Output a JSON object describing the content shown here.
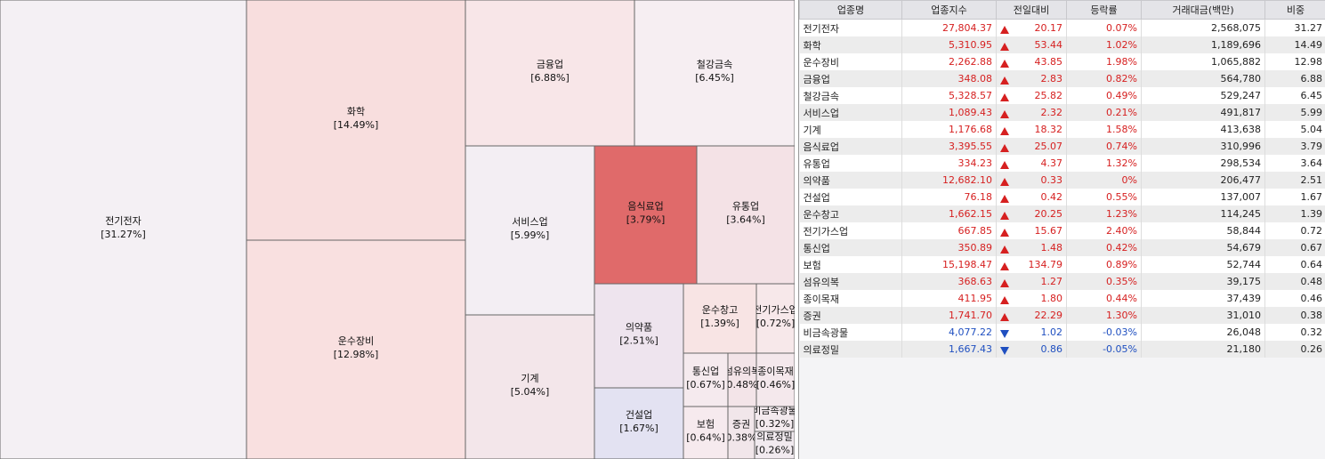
{
  "chart_data": {
    "type": "treemap",
    "categories": [
      "전기전자",
      "화학",
      "운수장비",
      "금융업",
      "철강금속",
      "서비스업",
      "기계",
      "음식료업",
      "유통업",
      "의약품",
      "건설업",
      "운수창고",
      "전기가스업",
      "통신업",
      "보험",
      "섬유의복",
      "종이목재",
      "증권",
      "비금속광물",
      "의료정밀"
    ],
    "values": [
      31.27,
      14.49,
      12.98,
      6.88,
      6.45,
      5.99,
      5.04,
      3.79,
      3.64,
      2.51,
      1.67,
      1.39,
      0.72,
      0.67,
      0.64,
      0.48,
      0.46,
      0.38,
      0.32,
      0.26
    ],
    "value_labels": [
      "[31.27%]",
      "[14.49%]",
      "[12.98%]",
      "[6.88%]",
      "[6.45%]",
      "[5.99%]",
      "[5.04%]",
      "[3.79%]",
      "[3.64%]",
      "[2.51%]",
      "[1.67%]",
      "[1.39%]",
      "[0.72%]",
      "[0.67%]",
      "[0.64%]",
      "[0.48%]",
      "[0.46%]",
      "[0.38%]",
      "[0.32%]",
      "[0.26%]"
    ],
    "colors": [
      "#f4f0f4",
      "#f8dede",
      "#f9e0e0",
      "#f8e6e8",
      "#f6eef2",
      "#f3eef3",
      "#f3e6ea",
      "#e06a6a",
      "#f4e2e6",
      "#eee4ee",
      "#e3e2f2",
      "#f8e4e4",
      "#f7e8ea",
      "#f5eaee",
      "#f6eaee",
      "#f3e4e8",
      "#f4e8ec",
      "#f1e6ea",
      "#f3eaee",
      "#f1eaef"
    ]
  },
  "table": {
    "header": [
      "업종명",
      "업종지수",
      "전일대비",
      "등락률",
      "거래대금(백만)",
      "비중"
    ],
    "directions": [
      "up",
      "up",
      "up",
      "up",
      "up",
      "up",
      "up",
      "up",
      "up",
      "up",
      "up",
      "up",
      "up",
      "up",
      "up",
      "up",
      "up",
      "up",
      "down",
      "down"
    ],
    "rows": [
      [
        "전기전자",
        "27,804.37",
        "20.17",
        "0.07%",
        "2,568,075",
        "31.27"
      ],
      [
        "화학",
        "5,310.95",
        "53.44",
        "1.02%",
        "1,189,696",
        "14.49"
      ],
      [
        "운수장비",
        "2,262.88",
        "43.85",
        "1.98%",
        "1,065,882",
        "12.98"
      ],
      [
        "금융업",
        "348.08",
        "2.83",
        "0.82%",
        "564,780",
        "6.88"
      ],
      [
        "철강금속",
        "5,328.57",
        "25.82",
        "0.49%",
        "529,247",
        "6.45"
      ],
      [
        "서비스업",
        "1,089.43",
        "2.32",
        "0.21%",
        "491,817",
        "5.99"
      ],
      [
        "기계",
        "1,176.68",
        "18.32",
        "1.58%",
        "413,638",
        "5.04"
      ],
      [
        "음식료업",
        "3,395.55",
        "25.07",
        "0.74%",
        "310,996",
        "3.79"
      ],
      [
        "유통업",
        "334.23",
        "4.37",
        "1.32%",
        "298,534",
        "3.64"
      ],
      [
        "의약품",
        "12,682.10",
        "0.33",
        "0%",
        "206,477",
        "2.51"
      ],
      [
        "건설업",
        "76.18",
        "0.42",
        "0.55%",
        "137,007",
        "1.67"
      ],
      [
        "운수창고",
        "1,662.15",
        "20.25",
        "1.23%",
        "114,245",
        "1.39"
      ],
      [
        "전기가스업",
        "667.85",
        "15.67",
        "2.40%",
        "58,844",
        "0.72"
      ],
      [
        "통신업",
        "350.89",
        "1.48",
        "0.42%",
        "54,679",
        "0.67"
      ],
      [
        "보험",
        "15,198.47",
        "134.79",
        "0.89%",
        "52,744",
        "0.64"
      ],
      [
        "섬유의복",
        "368.63",
        "1.27",
        "0.35%",
        "39,175",
        "0.48"
      ],
      [
        "종이목재",
        "411.95",
        "1.80",
        "0.44%",
        "37,439",
        "0.46"
      ],
      [
        "증권",
        "1,741.70",
        "22.29",
        "1.30%",
        "31,010",
        "0.38"
      ],
      [
        "비금속광물",
        "4,077.22",
        "1.02",
        "-0.03%",
        "26,048",
        "0.32"
      ],
      [
        "의료정밀",
        "1,667.43",
        "0.86",
        "-0.05%",
        "21,180",
        "0.26"
      ]
    ]
  }
}
